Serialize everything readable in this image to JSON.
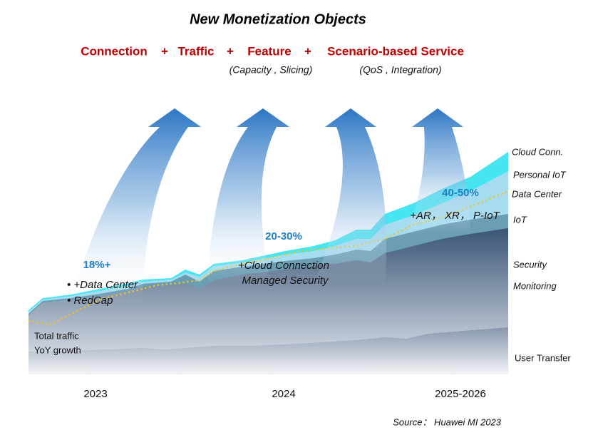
{
  "header": {
    "title": "New Monetization Objects"
  },
  "formula": {
    "terms": [
      "Connection",
      "+",
      "Traffic",
      "+",
      "Feature",
      "+",
      "Scenario-based Service"
    ],
    "details": [
      "(Capacity , Slicing)",
      "(QoS , Integration)"
    ]
  },
  "growth": [
    "18%+",
    "20-30%",
    "40-50%"
  ],
  "annotations": {
    "stage1": [
      "• +Data Center",
      "• RedCap"
    ],
    "stage2": [
      "+Cloud Connection",
      "Managed Security"
    ],
    "stage3": [
      "+AR， XR， P-IoT"
    ]
  },
  "left_label": [
    "Total traffic",
    "YoY growth"
  ],
  "layers": [
    "Cloud Conn.",
    "Personal IoT",
    "Data Center",
    "IoT",
    "Security",
    "Monitoring",
    "User Transfer"
  ],
  "periods": [
    "2023",
    "2024",
    "2025-2026"
  ],
  "source": "Source： Huawei MI 2023"
}
